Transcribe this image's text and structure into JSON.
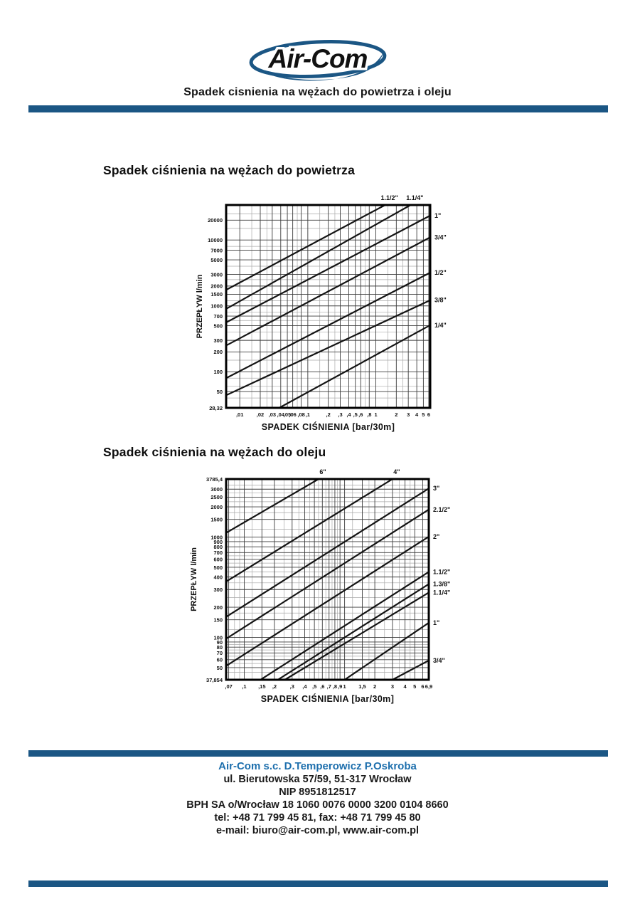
{
  "logo": {
    "text": "Air-Com"
  },
  "header": {
    "title": "Spadek cisnienia na wężach do powietrza i oleju"
  },
  "colors": {
    "accent": "#1b5684",
    "footer_company": "#1d6fad",
    "chart_line": "#141414"
  },
  "sections": {
    "air": {
      "heading": "Spadek ciśnienia na wężach do powietrza"
    },
    "oil": {
      "heading": "Spadek ciśnienia na wężach do oleju"
    }
  },
  "footer": {
    "lines": [
      "Air-Com s.c. D.Temperowicz P.Oskroba",
      "ul. Bierutowska 57/59, 51-317 Wrocław",
      "NIP 8951812517",
      "BPH SA o/Wrocław 18 1060 0076 0000 3200 0104 8660",
      "tel:  +48 71 799 45 81, fax: +48 71 799 45 80",
      "e-mail: biuro@air-com.pl, www.air-com.pl"
    ]
  },
  "chart_data": [
    {
      "type": "line",
      "title": "Spadek ciśnienia na wężach do powietrza",
      "xlabel": "SPADEK CIŚNIENIA [bar/30m]",
      "ylabel": "PRZEPŁYW l/min",
      "xscale": "log",
      "yscale": "log",
      "xlim": [
        0.0063,
        6.3
      ],
      "ylim": [
        28.32,
        34000
      ],
      "x_ticks": [
        {
          "v": 0.01,
          "t": ",01"
        },
        {
          "v": 0.02,
          "t": ",02"
        },
        {
          "v": 0.03,
          "t": ",03"
        },
        {
          "v": 0.04,
          "t": ",04"
        },
        {
          "v": 0.05,
          "t": ",05"
        },
        {
          "v": 0.06,
          "t": ",06"
        },
        {
          "v": 0.08,
          "t": ",08"
        },
        {
          "v": 0.1,
          "t": ",1"
        },
        {
          "v": 0.2,
          "t": ",2"
        },
        {
          "v": 0.3,
          "t": ",3"
        },
        {
          "v": 0.4,
          "t": ",4"
        },
        {
          "v": 0.5,
          "t": ",5"
        },
        {
          "v": 0.6,
          "t": ",6"
        },
        {
          "v": 0.8,
          "t": ",8"
        },
        {
          "v": 1,
          "t": "1"
        },
        {
          "v": 2,
          "t": "2"
        },
        {
          "v": 3,
          "t": "3"
        },
        {
          "v": 4,
          "t": "4"
        },
        {
          "v": 5,
          "t": "5"
        },
        {
          "v": 6,
          "t": "6"
        }
      ],
      "y_ticks": [
        {
          "v": 20000,
          "t": "20000"
        },
        {
          "v": 10000,
          "t": "10000"
        },
        {
          "v": 7000,
          "t": "7000"
        },
        {
          "v": 5000,
          "t": "5000"
        },
        {
          "v": 3000,
          "t": "3000"
        },
        {
          "v": 2000,
          "t": "2000"
        },
        {
          "v": 1500,
          "t": "1500"
        },
        {
          "v": 1000,
          "t": "1000"
        },
        {
          "v": 700,
          "t": "700"
        },
        {
          "v": 500,
          "t": "500"
        },
        {
          "v": 300,
          "t": "300"
        },
        {
          "v": 200,
          "t": "200"
        },
        {
          "v": 100,
          "t": "100"
        },
        {
          "v": 50,
          "t": "50"
        },
        {
          "v": 28.32,
          "t": "28,32"
        }
      ],
      "x_minor": [
        0.015,
        0.025,
        0.07,
        0.15,
        0.25,
        0.7,
        1.5,
        2.5
      ],
      "y_minor": [
        40,
        60,
        80,
        150,
        400,
        600,
        800,
        1200,
        2500,
        4000,
        8000,
        15000,
        25000
      ],
      "series": [
        {
          "name": "1.1/2\"",
          "label_pos": "top",
          "points": [
            [
              0.0063,
              1750
            ],
            [
              1.37,
              34000
            ]
          ]
        },
        {
          "name": "1.1/4\"",
          "label_pos": "top",
          "points": [
            [
              0.0063,
              900
            ],
            [
              3.24,
              34000
            ]
          ]
        },
        {
          "name": "1\"",
          "label_pos": "right",
          "points": [
            [
              0.0063,
              560
            ],
            [
              6.3,
              23500
            ]
          ]
        },
        {
          "name": "3/4\"",
          "label_pos": "right",
          "points": [
            [
              0.0063,
              250
            ],
            [
              6.3,
              11000
            ]
          ]
        },
        {
          "name": "1/2\"",
          "label_pos": "right",
          "points": [
            [
              0.0063,
              80
            ],
            [
              6.3,
              3200
            ]
          ]
        },
        {
          "name": "3/8\"",
          "label_pos": "right",
          "points": [
            [
              0.0063,
              44
            ],
            [
              6.3,
              1220
            ]
          ]
        },
        {
          "name": "1/4\"",
          "label_pos": "right",
          "points": [
            [
              0.038,
              28.32
            ],
            [
              6.3,
              510
            ]
          ]
        }
      ]
    },
    {
      "type": "line",
      "title": "Spadek ciśnienia na wężach do oleju",
      "xlabel": "SPADEK CIŚNIENIA [bar/30m]",
      "ylabel": "PRZEPŁYW l/min",
      "xscale": "log",
      "yscale": "log",
      "xlim": [
        0.066,
        6.9
      ],
      "ylim": [
        37.854,
        3785.4
      ],
      "x_ticks": [
        {
          "v": 0.07,
          "t": ",07"
        },
        {
          "v": 0.1,
          "t": ",1"
        },
        {
          "v": 0.15,
          "t": ",15"
        },
        {
          "v": 0.2,
          "t": ",2"
        },
        {
          "v": 0.3,
          "t": ",3"
        },
        {
          "v": 0.4,
          "t": ",4"
        },
        {
          "v": 0.5,
          "t": ",5"
        },
        {
          "v": 0.6,
          "t": ",6"
        },
        {
          "v": 0.7,
          "t": ",7"
        },
        {
          "v": 0.8,
          "t": ",8"
        },
        {
          "v": 0.9,
          "t": ",9"
        },
        {
          "v": 1,
          "t": "1"
        },
        {
          "v": 1.5,
          "t": "1,5"
        },
        {
          "v": 2,
          "t": "2"
        },
        {
          "v": 3,
          "t": "3"
        },
        {
          "v": 4,
          "t": "4"
        },
        {
          "v": 5,
          "t": "5"
        },
        {
          "v": 6,
          "t": "6"
        },
        {
          "v": 6.9,
          "t": "6,9"
        }
      ],
      "y_ticks": [
        {
          "v": 3785.4,
          "t": "3785,4"
        },
        {
          "v": 3000,
          "t": "3000"
        },
        {
          "v": 2500,
          "t": "2500"
        },
        {
          "v": 2000,
          "t": "2000"
        },
        {
          "v": 1500,
          "t": "1500"
        },
        {
          "v": 1000,
          "t": "1000"
        },
        {
          "v": 900,
          "t": "900"
        },
        {
          "v": 800,
          "t": "800"
        },
        {
          "v": 700,
          "t": "700"
        },
        {
          "v": 600,
          "t": "600"
        },
        {
          "v": 500,
          "t": "500"
        },
        {
          "v": 400,
          "t": "400"
        },
        {
          "v": 300,
          "t": "300"
        },
        {
          "v": 200,
          "t": "200"
        },
        {
          "v": 150,
          "t": "150"
        },
        {
          "v": 100,
          "t": "100"
        },
        {
          "v": 90,
          "t": "90"
        },
        {
          "v": 80,
          "t": "80"
        },
        {
          "v": 70,
          "t": "70"
        },
        {
          "v": 60,
          "t": "60"
        },
        {
          "v": 50,
          "t": "50"
        },
        {
          "v": 37.854,
          "t": "37,854"
        }
      ],
      "x_minor": [
        0.08,
        0.09,
        0.12,
        0.25,
        0.35,
        0.45,
        0.55,
        0.65,
        0.75,
        0.85,
        1.2,
        1.75,
        2.5,
        3.5,
        4.5
      ],
      "y_minor": [
        45,
        55,
        65,
        75,
        85,
        120,
        175,
        250,
        350,
        450,
        550,
        650,
        1200,
        1750,
        2250,
        2750,
        3300
      ],
      "series": [
        {
          "name": "6\"",
          "label_pos": "top",
          "points": [
            [
              0.066,
              1100
            ],
            [
              0.55,
              3785.4
            ]
          ]
        },
        {
          "name": "4\"",
          "label_pos": "top",
          "points": [
            [
              0.066,
              360
            ],
            [
              3.0,
              3785.4
            ]
          ]
        },
        {
          "name": "3\"",
          "label_pos": "right",
          "points": [
            [
              0.066,
              160
            ],
            [
              6.9,
              3050
            ]
          ]
        },
        {
          "name": "2.1/2\"",
          "label_pos": "right",
          "points": [
            [
              0.066,
              97
            ],
            [
              6.9,
              1880
            ]
          ]
        },
        {
          "name": "2\"",
          "label_pos": "right",
          "points": [
            [
              0.066,
              52
            ],
            [
              6.9,
              1010
            ]
          ]
        },
        {
          "name": "1.1/2\"",
          "label_pos": "right",
          "points": [
            [
              0.145,
              37.854
            ],
            [
              6.9,
              450
            ]
          ]
        },
        {
          "name": "1.3/8\"",
          "label_pos": "right",
          "points": [
            [
              0.216,
              37.854
            ],
            [
              6.9,
              340
            ]
          ]
        },
        {
          "name": "1.1/4\"",
          "label_pos": "right",
          "points": [
            [
              0.254,
              37.854
            ],
            [
              6.9,
              280
            ]
          ]
        },
        {
          "name": "1\"",
          "label_pos": "right",
          "points": [
            [
              1.0,
              37.854
            ],
            [
              6.9,
              140
            ]
          ]
        },
        {
          "name": "3/4\"",
          "label_pos": "right",
          "points": [
            [
              3.0,
              37.854
            ],
            [
              6.9,
              59
            ]
          ]
        }
      ]
    }
  ]
}
